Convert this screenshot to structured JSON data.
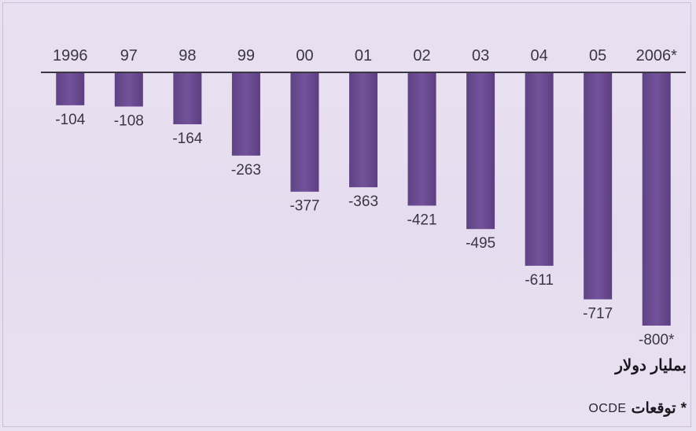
{
  "chart_data": {
    "type": "bar",
    "categories": [
      "1996",
      "97",
      "98",
      "99",
      "00",
      "01",
      "02",
      "03",
      "04",
      "05",
      "2006*"
    ],
    "value_labels": [
      "-104",
      "-108",
      "-164",
      "-263",
      "-377",
      "-363",
      "-421",
      "-495",
      "-611",
      "-717",
      "-800*"
    ],
    "values": [
      -104,
      -108,
      -164,
      -263,
      -377,
      -363,
      -421,
      -495,
      -611,
      -717,
      -800
    ],
    "ylim": [
      -800,
      0
    ],
    "unit_label": "بمليار دولار",
    "grid": false,
    "colors": {
      "bar": "#6f4e95",
      "bar_dark": "#5a3d7c",
      "baseline": "#3a3642"
    }
  },
  "footnote": {
    "marker": "*",
    "text": "توقعات",
    "source": "OCDE"
  }
}
